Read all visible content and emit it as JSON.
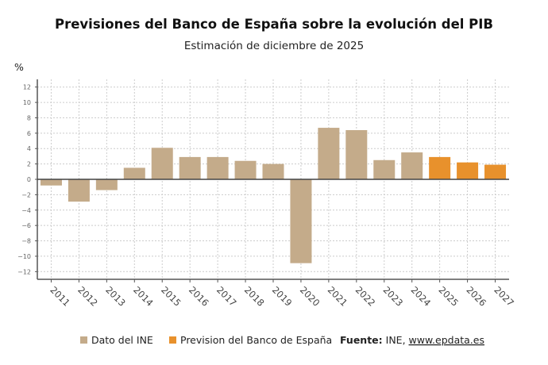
{
  "chart_data": {
    "type": "bar",
    "title": "Previsiones del Banco de España sobre la evolución del PIB",
    "subtitle": "Estimación de diciembre de 2025",
    "ylabel": "%",
    "xlabel": "",
    "ylim": [
      -13,
      13
    ],
    "yticks": [
      12,
      10,
      8,
      6,
      4,
      2,
      0,
      -2,
      -4,
      -6,
      -8,
      -10,
      -12
    ],
    "grid": true,
    "legend_position": "bottom",
    "categories": [
      "2011",
      "2012",
      "2013",
      "2014",
      "2015",
      "2016",
      "2017",
      "2018",
      "2019",
      "2020",
      "2021",
      "2022",
      "2023",
      "2024",
      "2025",
      "2026",
      "2027"
    ],
    "values": [
      -0.8,
      -2.9,
      -1.4,
      1.5,
      4.1,
      2.9,
      2.9,
      2.4,
      2.0,
      -10.9,
      6.7,
      6.4,
      2.5,
      3.5,
      2.9,
      2.2,
      1.9
    ],
    "series_kind": [
      "ine",
      "ine",
      "ine",
      "ine",
      "ine",
      "ine",
      "ine",
      "ine",
      "ine",
      "ine",
      "ine",
      "ine",
      "ine",
      "ine",
      "bde",
      "bde",
      "bde"
    ],
    "legend": [
      {
        "key": "ine",
        "label": "Dato del INE",
        "color": "#c4ab8a"
      },
      {
        "key": "bde",
        "label": "Prevision del Banco de España",
        "color": "#e8912c"
      }
    ],
    "source_label": "Fuente:",
    "source_text": " INE, ",
    "source_link": "www.epdata.es"
  }
}
